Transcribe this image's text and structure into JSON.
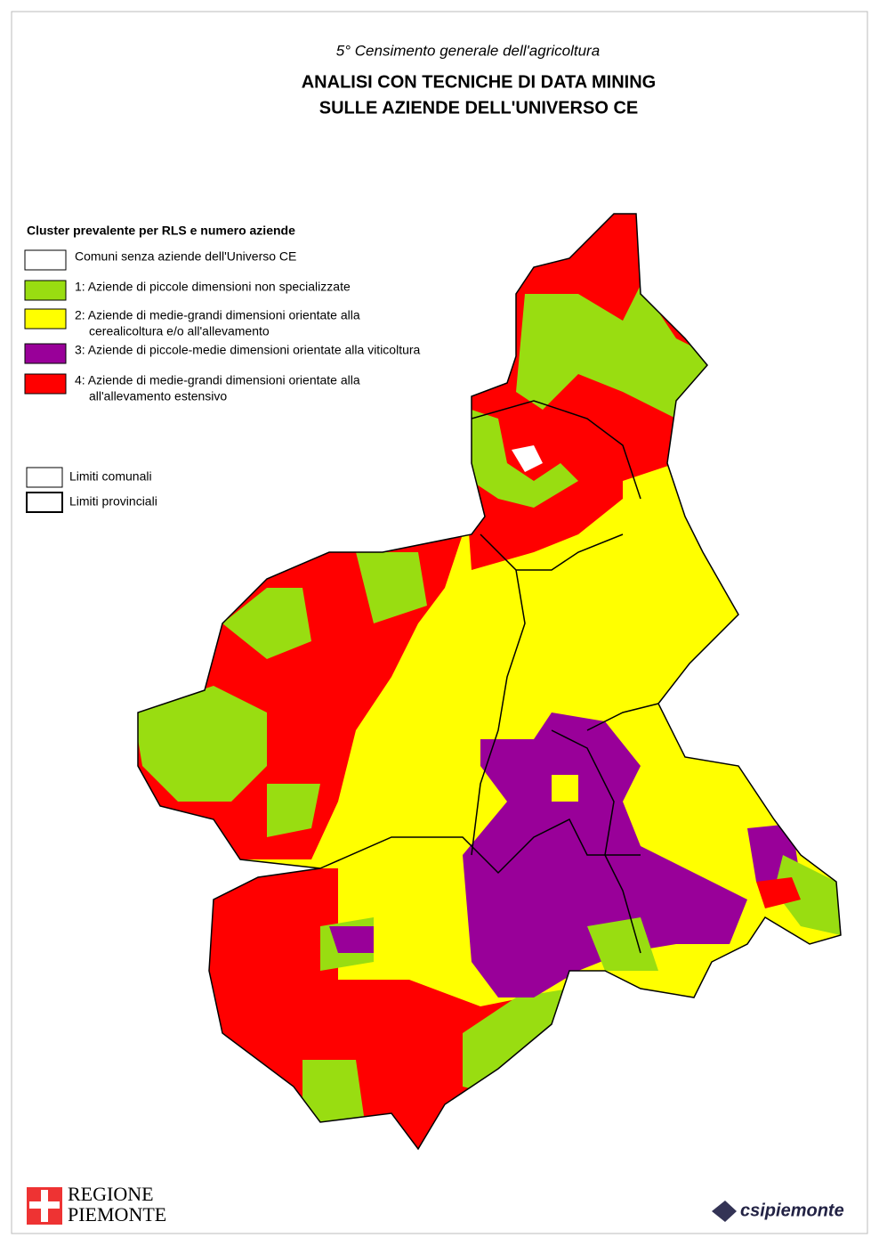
{
  "header": {
    "subtitle": "5° Censimento generale dell'agricoltura",
    "title_lines": [
      "ANALISI CON TECNICHE DI DATA MINING",
      "SULLE AZIENDE DELL'UNIVERSO CE"
    ]
  },
  "legend": {
    "title": "Cluster prevalente per RLS e numero aziende",
    "items": [
      {
        "color": "#ffffff",
        "lines": [
          "Comuni senza aziende dell'Universo CE"
        ]
      },
      {
        "color": "#99dd11",
        "lines": [
          "1: Aziende di piccole dimensioni non specializzate"
        ]
      },
      {
        "color": "#ffff00",
        "lines": [
          "2: Aziende di medie-grandi dimensioni orientate alla",
          "cerealicoltura e/o all'allevamento"
        ]
      },
      {
        "color": "#990099",
        "lines": [
          "3: Aziende di piccole-medie dimensioni orientate alla viticoltura"
        ]
      },
      {
        "color": "#ff0000",
        "lines": [
          "4: Aziende di medie-grandi dimensioni orientate alla",
          "all'allevamento estensivo"
        ]
      }
    ],
    "limits": [
      "Limiti comunali",
      "Limiti provinciali"
    ]
  },
  "logos": {
    "regione": [
      "REGIONE",
      "PIEMONTE"
    ],
    "csi": "csipiemonte"
  }
}
